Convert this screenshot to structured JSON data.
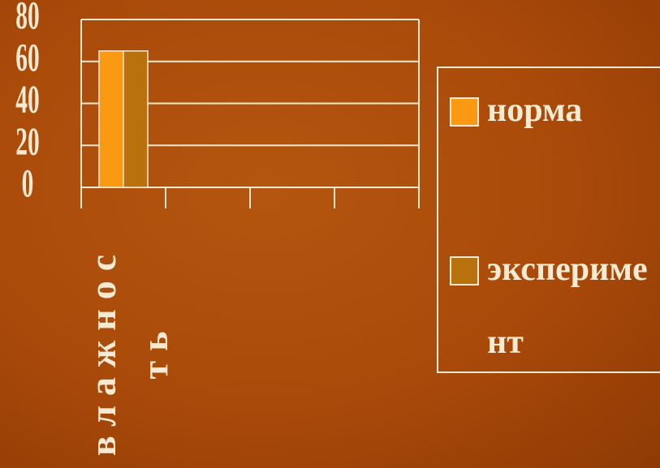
{
  "chart_data": {
    "type": "bar",
    "categories": [
      "влажность",
      null,
      null,
      null
    ],
    "series": [
      {
        "name": "норма",
        "color": "#fb9a12",
        "values": [
          65,
          null,
          null,
          null
        ]
      },
      {
        "name": "эксперимент",
        "color": "#b8710c",
        "values": [
          65,
          null,
          null,
          null
        ]
      }
    ],
    "ylim": [
      0,
      80
    ],
    "yticks": [
      0,
      20,
      40,
      60,
      80
    ],
    "grid": true,
    "legend": "right"
  }
}
